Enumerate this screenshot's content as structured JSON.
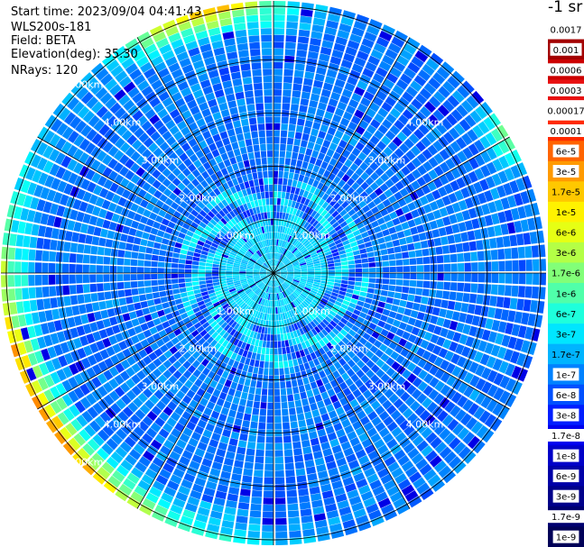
{
  "header": {
    "start_time": "Start time: 2023/09/04 04:41:43",
    "device": "WLS200s-181",
    "field": "Field: BETA",
    "elevation": "Elevation(deg): 35.30",
    "nrays": "NRays: 120"
  },
  "colorbar": {
    "unit": "-1 sr",
    "labels": [
      "0.0017",
      "0.001",
      "0.0006",
      "0.0003",
      "0.00017",
      "0.0001",
      "6e-5",
      "3e-5",
      "1.7e-5",
      "1e-5",
      "6e-6",
      "3e-6",
      "1.7e-6",
      "1e-6",
      "6e-7",
      "3e-7",
      "1.7e-7",
      "1e-7",
      "6e-8",
      "3e-8",
      "1.7e-8",
      "1e-8",
      "6e-9",
      "3e-9",
      "1.7e-9",
      "1e-9"
    ],
    "colors": [
      "#ffffff",
      "#a30000",
      "#cc0000",
      "#e81010",
      "#ffffff",
      "#ff2a00",
      "#ff6400",
      "#ff9a00",
      "#ffc800",
      "#fff200",
      "#e6ff14",
      "#b4ff46",
      "#82ff78",
      "#50ffaa",
      "#1effdc",
      "#00e6ff",
      "#00b4ff",
      "#0082ff",
      "#0050ff",
      "#001eff",
      "#0000ee",
      "#0000c8",
      "#0000a8",
      "#00008a",
      "#000070",
      "#000058"
    ],
    "label_on_white": [
      0,
      4,
      8,
      9,
      10,
      11,
      12,
      13,
      14,
      15,
      16
    ]
  },
  "chart_data": {
    "type": "heatmap",
    "projection": "polar PPI",
    "field": "BETA",
    "nrays": 120,
    "range_rings_km": [
      1.0,
      2.0,
      3.0,
      4.0,
      5.0
    ],
    "ring_labels": [
      "1.00km",
      "2.00km",
      "3.00km",
      "4.00km",
      "5.00km"
    ],
    "spokes_deg": [
      0,
      30,
      60,
      90,
      120,
      150,
      180,
      210,
      240,
      270,
      300,
      330
    ],
    "max_range_km": 5.1,
    "colormap": "jet",
    "value_description": "mostly blue (1e-8 to 1e-7) with yellow-red rim near maximum range toward northeast, east and south"
  }
}
